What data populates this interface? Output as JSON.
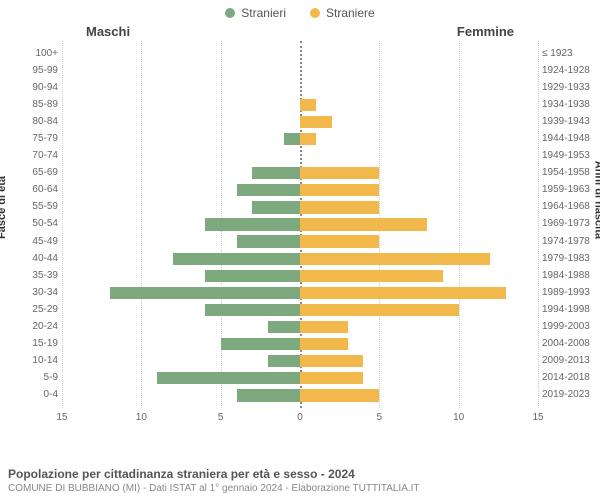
{
  "legend": {
    "male": {
      "label": "Stranieri",
      "color": "#7ea87e"
    },
    "female": {
      "label": "Straniere",
      "color": "#f1b84b"
    }
  },
  "column_titles": {
    "left": "Maschi",
    "right": "Femmine"
  },
  "axis_labels": {
    "left": "Fasce di età",
    "right": "Anni di nascita"
  },
  "chart": {
    "type": "population-pyramid",
    "x_max": 15,
    "x_ticks": [
      15,
      10,
      5,
      0,
      5,
      10,
      15
    ],
    "bar_color_male": "#7ea87e",
    "bar_color_female": "#f1b84b",
    "grid_color": "#cccccc",
    "center_color": "#888888",
    "background_color": "#ffffff",
    "label_fontsize": 10,
    "rows": [
      {
        "age": "100+",
        "birth": "≤ 1923",
        "m": 0,
        "f": 0
      },
      {
        "age": "95-99",
        "birth": "1924-1928",
        "m": 0,
        "f": 0
      },
      {
        "age": "90-94",
        "birth": "1929-1933",
        "m": 0,
        "f": 0
      },
      {
        "age": "85-89",
        "birth": "1934-1938",
        "m": 0,
        "f": 1
      },
      {
        "age": "80-84",
        "birth": "1939-1943",
        "m": 0,
        "f": 2
      },
      {
        "age": "75-79",
        "birth": "1944-1948",
        "m": 1,
        "f": 1
      },
      {
        "age": "70-74",
        "birth": "1949-1953",
        "m": 0,
        "f": 0
      },
      {
        "age": "65-69",
        "birth": "1954-1958",
        "m": 3,
        "f": 5
      },
      {
        "age": "60-64",
        "birth": "1959-1963",
        "m": 4,
        "f": 5
      },
      {
        "age": "55-59",
        "birth": "1964-1968",
        "m": 3,
        "f": 5
      },
      {
        "age": "50-54",
        "birth": "1969-1973",
        "m": 6,
        "f": 8
      },
      {
        "age": "45-49",
        "birth": "1974-1978",
        "m": 4,
        "f": 5
      },
      {
        "age": "40-44",
        "birth": "1979-1983",
        "m": 8,
        "f": 12
      },
      {
        "age": "35-39",
        "birth": "1984-1988",
        "m": 6,
        "f": 9
      },
      {
        "age": "30-34",
        "birth": "1989-1993",
        "m": 12,
        "f": 13
      },
      {
        "age": "25-29",
        "birth": "1994-1998",
        "m": 6,
        "f": 10
      },
      {
        "age": "20-24",
        "birth": "1999-2003",
        "m": 2,
        "f": 3
      },
      {
        "age": "15-19",
        "birth": "2004-2008",
        "m": 5,
        "f": 3
      },
      {
        "age": "10-14",
        "birth": "2009-2013",
        "m": 2,
        "f": 4
      },
      {
        "age": "5-9",
        "birth": "2014-2018",
        "m": 9,
        "f": 4
      },
      {
        "age": "0-4",
        "birth": "2019-2023",
        "m": 4,
        "f": 5
      }
    ]
  },
  "footer": {
    "title": "Popolazione per cittadinanza straniera per età e sesso - 2024",
    "subtitle": "COMUNE DI BUBBIANO (MI) - Dati ISTAT al 1° gennaio 2024 - Elaborazione TUTTITALIA.IT"
  }
}
